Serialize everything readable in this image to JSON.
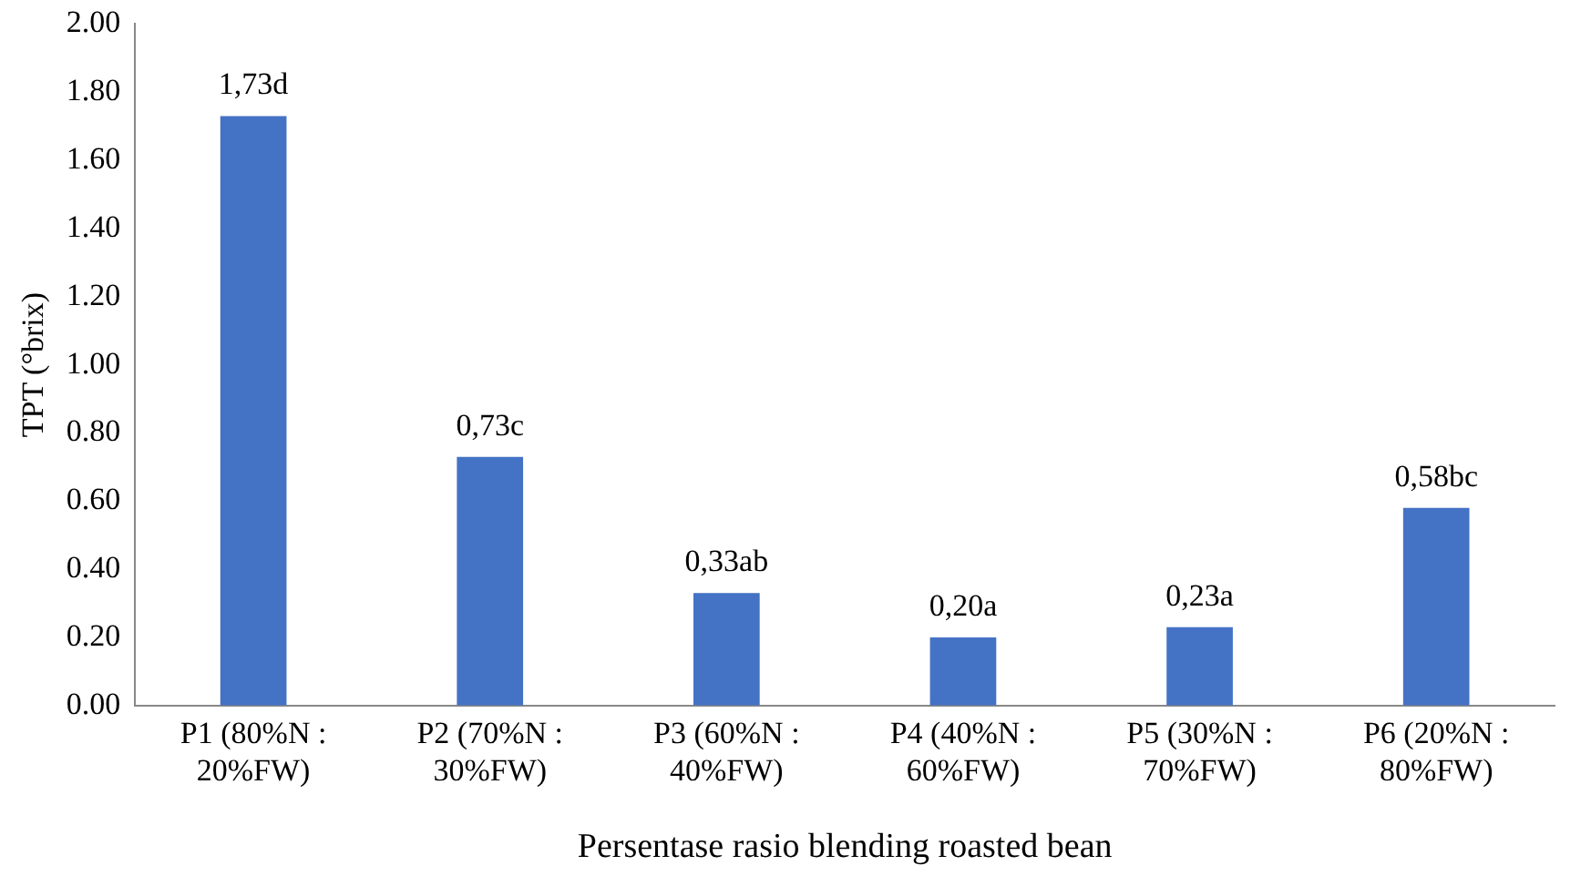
{
  "chart_data": {
    "type": "bar",
    "xlabel": "Persentase rasio blending roasted bean",
    "ylabel": "TPT (°brix)",
    "categories": [
      "P1 (80%N :\n20%FW)",
      "P2 (70%N :\n30%FW)",
      "P3 (60%N :\n40%FW)",
      "P4 (40%N :\n60%FW)",
      "P5 (30%N :\n70%FW)",
      "P6 (20%N :\n80%FW)"
    ],
    "values": [
      1.73,
      0.73,
      0.33,
      0.2,
      0.23,
      0.58
    ],
    "value_labels": [
      "1,73d",
      "0,73c",
      "0,33ab",
      "0,20a",
      "0,23a",
      "0,58bc"
    ],
    "color": "#4472c4",
    "ylim": [
      0,
      2
    ],
    "yticks": [
      {
        "value": 0,
        "label": "0.00"
      },
      {
        "value": 0.2,
        "label": "0.20"
      },
      {
        "value": 0.4,
        "label": "0.40"
      },
      {
        "value": 0.6,
        "label": "0.60"
      },
      {
        "value": 0.8,
        "label": "0.80"
      },
      {
        "value": 1,
        "label": "1.00"
      },
      {
        "value": 1.2,
        "label": "1.20"
      },
      {
        "value": 1.4,
        "label": "1.40"
      },
      {
        "value": 1.6,
        "label": "1.60"
      },
      {
        "value": 1.8,
        "label": "1.80"
      },
      {
        "value": 2,
        "label": "2.00"
      }
    ],
    "grid": false,
    "legend": false
  }
}
